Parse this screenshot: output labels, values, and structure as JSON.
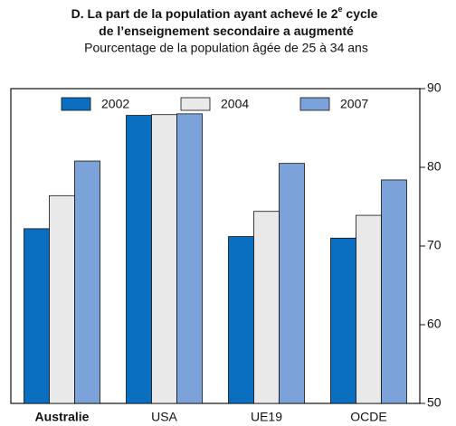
{
  "chart_data": {
    "type": "bar",
    "title": [
      "D. La part de la population ayant achevé le 2",
      "e",
      " cycle",
      "de l’enseignement secondaire a augmenté"
    ],
    "subtitle": "Pourcentage de la population âgée de 25 à 34 ans",
    "categories": [
      "Australie",
      "USA",
      "UE19",
      "OCDE"
    ],
    "series": [
      {
        "name": "2002",
        "color": "#0b6fc1",
        "values": [
          72.2,
          86.6,
          71.2,
          71.0
        ]
      },
      {
        "name": "2004",
        "color": "#e9e9e9",
        "values": [
          76.4,
          86.7,
          74.4,
          73.9
        ]
      },
      {
        "name": "2007",
        "color": "#7ba3d9",
        "values": [
          80.8,
          86.8,
          80.5,
          78.4
        ]
      }
    ],
    "ylim": [
      50,
      90
    ],
    "yticks": [
      50,
      60,
      70,
      80,
      90
    ],
    "grid": false
  }
}
